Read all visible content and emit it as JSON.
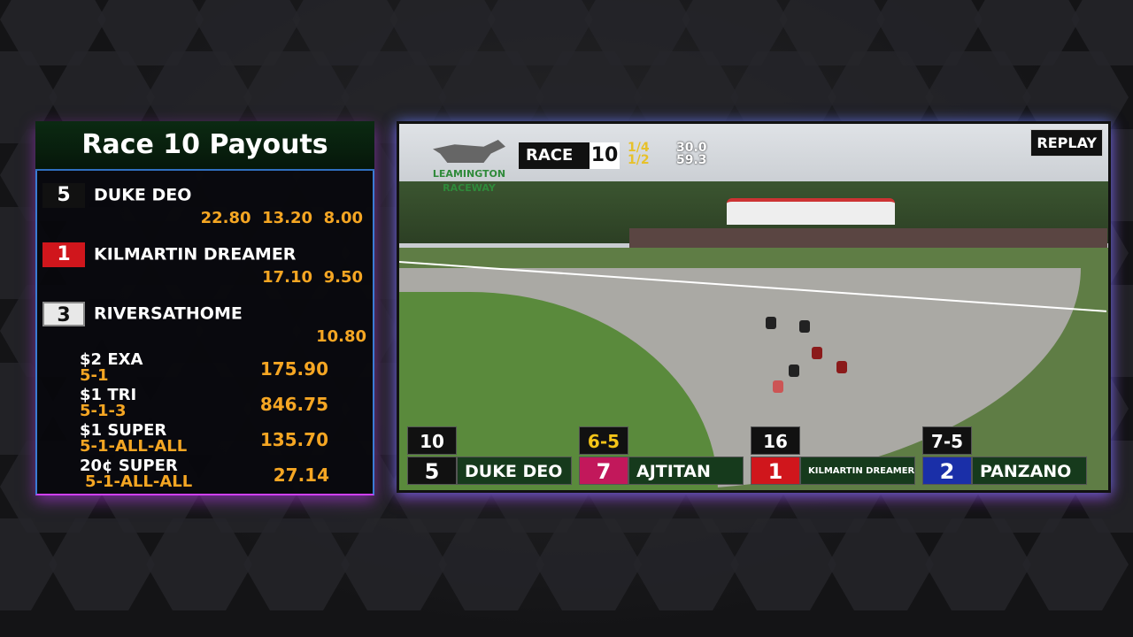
{
  "payouts": {
    "title": "Race 10 Payouts",
    "finishers": [
      {
        "pp": "5",
        "name": "DUKE DEO",
        "win": "22.80",
        "place": "13.20",
        "show": "8.00",
        "color": "#111111"
      },
      {
        "pp": "1",
        "name": "KILMARTIN DREAMER",
        "place": "17.10",
        "show": "9.50",
        "color": "#d0161c"
      },
      {
        "pp": "3",
        "name": "RIVERSATHOME",
        "show": "10.80",
        "color": "#eeeeee"
      }
    ],
    "wagers": [
      {
        "label": "$2 EXA",
        "combo": "5-1",
        "amount": "175.90"
      },
      {
        "label": "$1 TRI",
        "combo": "5-1-3",
        "amount": "846.75"
      },
      {
        "label": "$1 SUPER",
        "combo": "5-1-ALL-ALL",
        "amount": "135.70"
      },
      {
        "label": "20¢ SUPER",
        "combo": "5-1-ALL-ALL",
        "amount": "27.14"
      }
    ]
  },
  "video": {
    "logo": "LEAMINGTON RACEWAY",
    "race_label": "RACE",
    "race_number": "10",
    "fractions": [
      "1/4",
      "1/2"
    ],
    "times": [
      "30.0",
      "59.3"
    ],
    "replay": "REPLAY",
    "tote": [
      {
        "odds": "10",
        "pp": "5",
        "name": "DUKE DEO",
        "color": "#111111",
        "odds_color": "#ffffff"
      },
      {
        "odds": "6-5",
        "pp": "7",
        "name": "AJTITAN",
        "color": "#c2185b",
        "odds_color": "#f5c518"
      },
      {
        "odds": "16",
        "pp": "1",
        "name": "KILMARTIN DREAMER",
        "color": "#d0161c",
        "odds_color": "#ffffff"
      },
      {
        "odds": "7-5",
        "pp": "2",
        "name": "PANZANO",
        "color": "#1a2fa8",
        "odds_color": "#ffffff"
      }
    ]
  }
}
